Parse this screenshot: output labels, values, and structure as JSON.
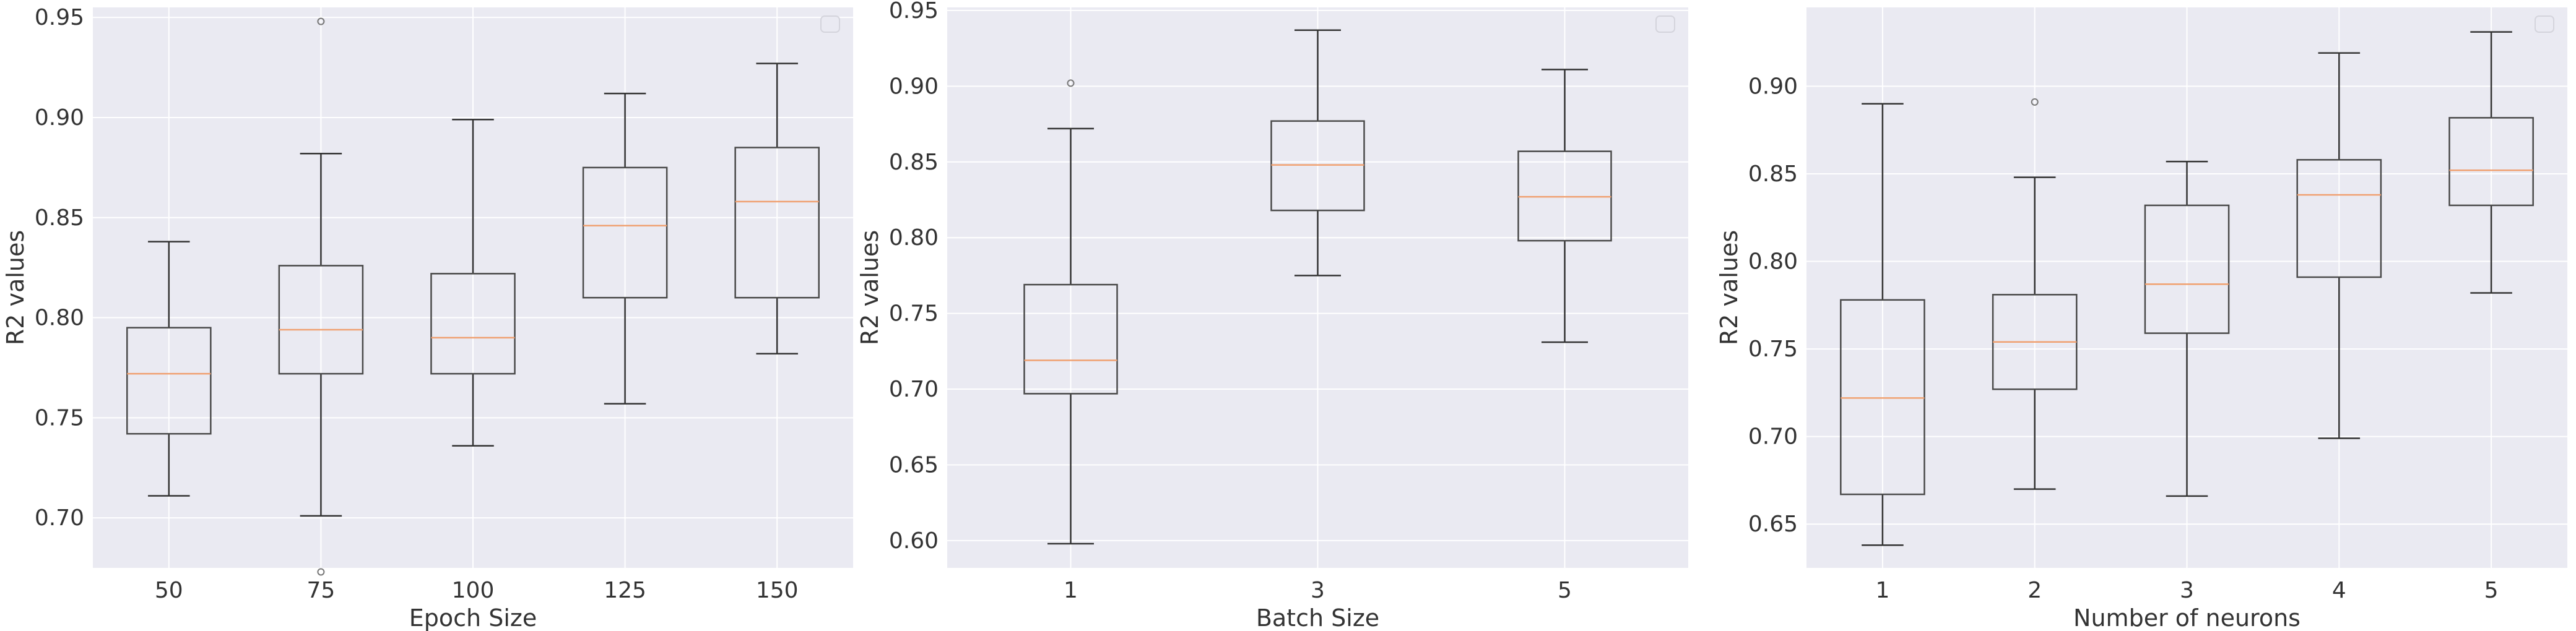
{
  "colors": {
    "plot_background": "#eaeaf2",
    "grid": "#ffffff",
    "box_edge": "#4a4a4a",
    "whisker": "#333333",
    "median": "#f0a070",
    "flier": "#777777"
  },
  "chart_data": [
    {
      "type": "box",
      "title": "",
      "xlabel": "Epoch Size",
      "ylabel": "R2 values",
      "ylim": [
        0.675,
        0.955
      ],
      "yticks": [
        "0.70",
        "0.75",
        "0.80",
        "0.85",
        "0.90",
        "0.95"
      ],
      "grid": true,
      "legend_position": "top-right",
      "categories": [
        "50",
        "75",
        "100",
        "125",
        "150"
      ],
      "boxes": [
        {
          "whislo": 0.711,
          "q1": 0.742,
          "med": 0.772,
          "q3": 0.795,
          "whishi": 0.838,
          "fliers": []
        },
        {
          "whislo": 0.701,
          "q1": 0.772,
          "med": 0.794,
          "q3": 0.826,
          "whishi": 0.882,
          "fliers": [
            0.948,
            0.673
          ]
        },
        {
          "whislo": 0.736,
          "q1": 0.772,
          "med": 0.79,
          "q3": 0.822,
          "whishi": 0.899,
          "fliers": []
        },
        {
          "whislo": 0.757,
          "q1": 0.81,
          "med": 0.846,
          "q3": 0.875,
          "whishi": 0.912,
          "fliers": []
        },
        {
          "whislo": 0.782,
          "q1": 0.81,
          "med": 0.858,
          "q3": 0.885,
          "whishi": 0.927,
          "fliers": []
        }
      ]
    },
    {
      "type": "box",
      "title": "",
      "xlabel": "Batch Size",
      "ylabel": "R2 values",
      "ylim": [
        0.582,
        0.952
      ],
      "yticks": [
        "0.60",
        "0.65",
        "0.70",
        "0.75",
        "0.80",
        "0.85",
        "0.90",
        "0.95"
      ],
      "grid": true,
      "legend_position": "top-right",
      "categories": [
        "1",
        "3",
        "5"
      ],
      "boxes": [
        {
          "whislo": 0.598,
          "q1": 0.697,
          "med": 0.719,
          "q3": 0.769,
          "whishi": 0.872,
          "fliers": [
            0.902
          ]
        },
        {
          "whislo": 0.775,
          "q1": 0.818,
          "med": 0.848,
          "q3": 0.877,
          "whishi": 0.937,
          "fliers": []
        },
        {
          "whislo": 0.731,
          "q1": 0.798,
          "med": 0.827,
          "q3": 0.857,
          "whishi": 0.911,
          "fliers": []
        }
      ]
    },
    {
      "type": "box",
      "title": "",
      "xlabel": "Number of neurons",
      "ylabel": "R2 values",
      "ylim": [
        0.625,
        0.945
      ],
      "yticks": [
        "0.65",
        "0.70",
        "0.75",
        "0.80",
        "0.85",
        "0.90"
      ],
      "grid": true,
      "legend_position": "top-right",
      "categories": [
        "1",
        "2",
        "3",
        "4",
        "5"
      ],
      "boxes": [
        {
          "whislo": 0.638,
          "q1": 0.667,
          "med": 0.722,
          "q3": 0.778,
          "whishi": 0.89,
          "fliers": []
        },
        {
          "whislo": 0.67,
          "q1": 0.727,
          "med": 0.754,
          "q3": 0.781,
          "whishi": 0.848,
          "fliers": [
            0.891
          ]
        },
        {
          "whislo": 0.666,
          "q1": 0.759,
          "med": 0.787,
          "q3": 0.832,
          "whishi": 0.857,
          "fliers": []
        },
        {
          "whislo": 0.699,
          "q1": 0.791,
          "med": 0.838,
          "q3": 0.858,
          "whishi": 0.919,
          "fliers": []
        },
        {
          "whislo": 0.782,
          "q1": 0.832,
          "med": 0.852,
          "q3": 0.882,
          "whishi": 0.931,
          "fliers": []
        }
      ]
    }
  ]
}
